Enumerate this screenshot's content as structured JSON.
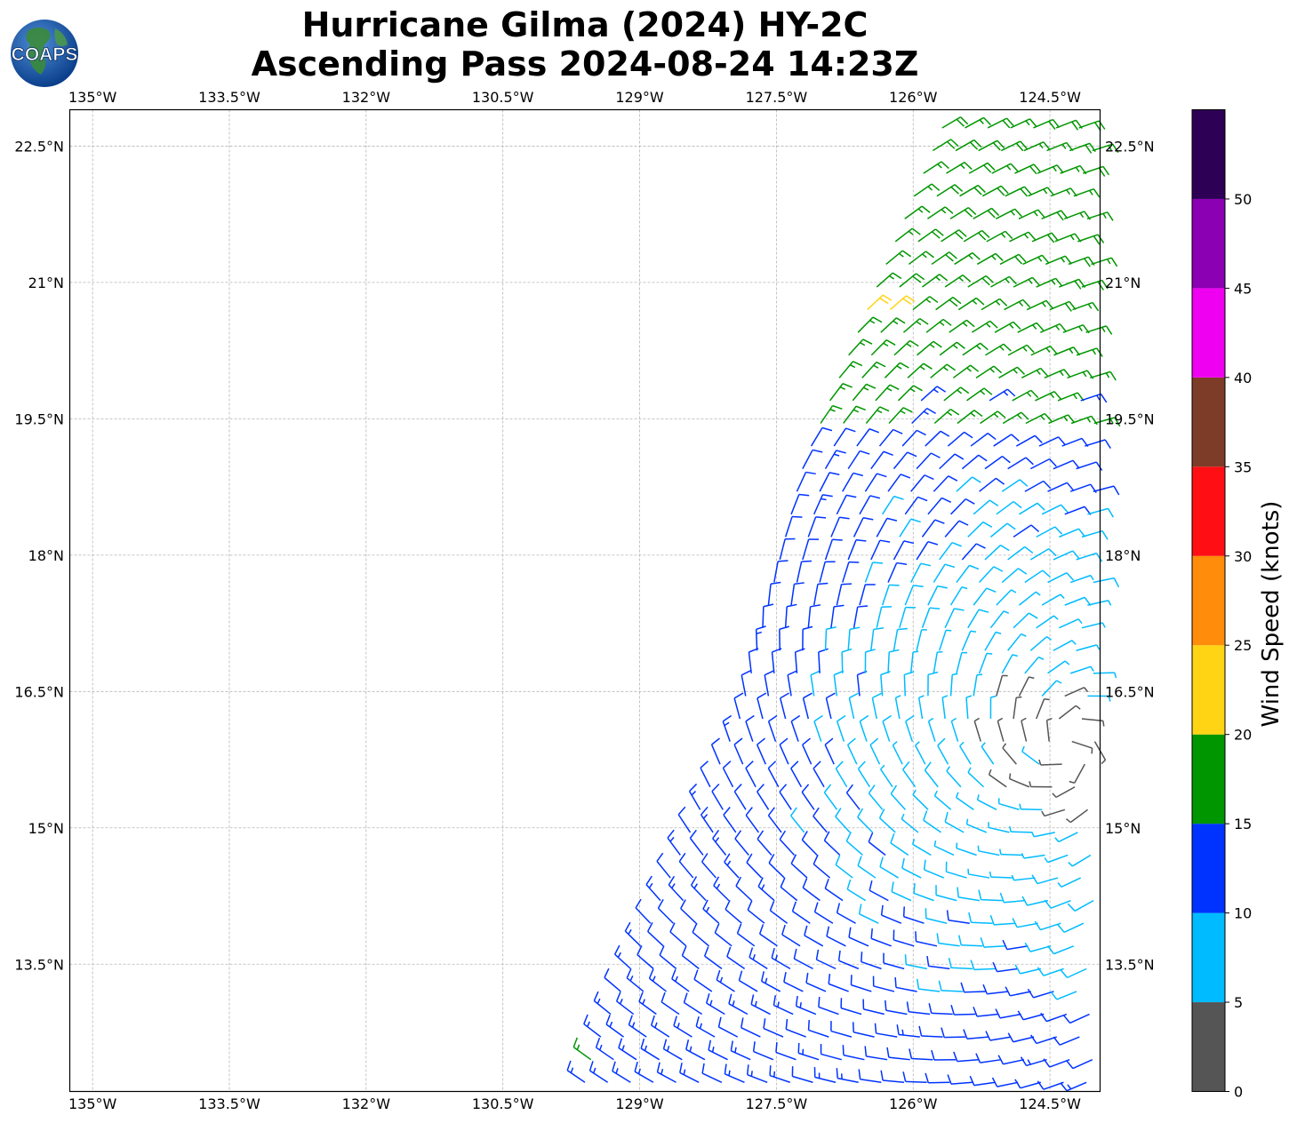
{
  "title": {
    "line1": "Hurricane Gilma (2024) HY-2C",
    "line2": "Ascending Pass 2024-08-24 14:23Z"
  },
  "logo": {
    "text": "COAPS",
    "icon": "globe-logo-icon"
  },
  "map": {
    "lon_ticks": [
      "135°W",
      "133.5°W",
      "132°W",
      "130.5°W",
      "129°W",
      "127.5°W",
      "126°W",
      "124.5°W"
    ],
    "lat_ticks": [
      "22.5°N",
      "21°N",
      "19.5°N",
      "18°N",
      "16.5°N",
      "15°N",
      "13.5°N"
    ],
    "lon_values": [
      -135,
      -133.5,
      -132,
      -130.5,
      -129,
      -127.5,
      -126,
      -124.5
    ],
    "lat_values": [
      22.5,
      21,
      19.5,
      18,
      16.5,
      15,
      13.5
    ],
    "lon_range": [
      -135.25,
      -123.95
    ],
    "lat_range": [
      12.1,
      22.9
    ],
    "gridlines": true,
    "storm_center_approx": {
      "lon": -124.3,
      "lat": 15.9
    },
    "swath_west_edge": [
      {
        "lat": 12.3,
        "lon": -129.6
      },
      {
        "lat": 16.2,
        "lon": -127.9
      },
      {
        "lat": 19.0,
        "lon": -127.2
      },
      {
        "lat": 22.9,
        "lon": -125.6
      }
    ]
  },
  "colorbar": {
    "label": "Wind Speed (knots)",
    "ticks": [
      "0",
      "5",
      "10",
      "15",
      "20",
      "25",
      "30",
      "35",
      "40",
      "45",
      "50"
    ],
    "bins": [
      {
        "min": 0,
        "max": 5,
        "color": "#555555"
      },
      {
        "min": 5,
        "max": 10,
        "color": "#00bbff"
      },
      {
        "min": 10,
        "max": 15,
        "color": "#0033ff"
      },
      {
        "min": 15,
        "max": 20,
        "color": "#009600"
      },
      {
        "min": 20,
        "max": 25,
        "color": "#ffd414"
      },
      {
        "min": 25,
        "max": 30,
        "color": "#ff8c0a"
      },
      {
        "min": 30,
        "max": 35,
        "color": "#ff0f14"
      },
      {
        "min": 35,
        "max": 40,
        "color": "#7d3c28"
      },
      {
        "min": 40,
        "max": 45,
        "color": "#f000f0"
      },
      {
        "min": 45,
        "max": 50,
        "color": "#8c00b4"
      },
      {
        "min": 50,
        "max": 55,
        "color": "#2d0055"
      }
    ]
  }
}
